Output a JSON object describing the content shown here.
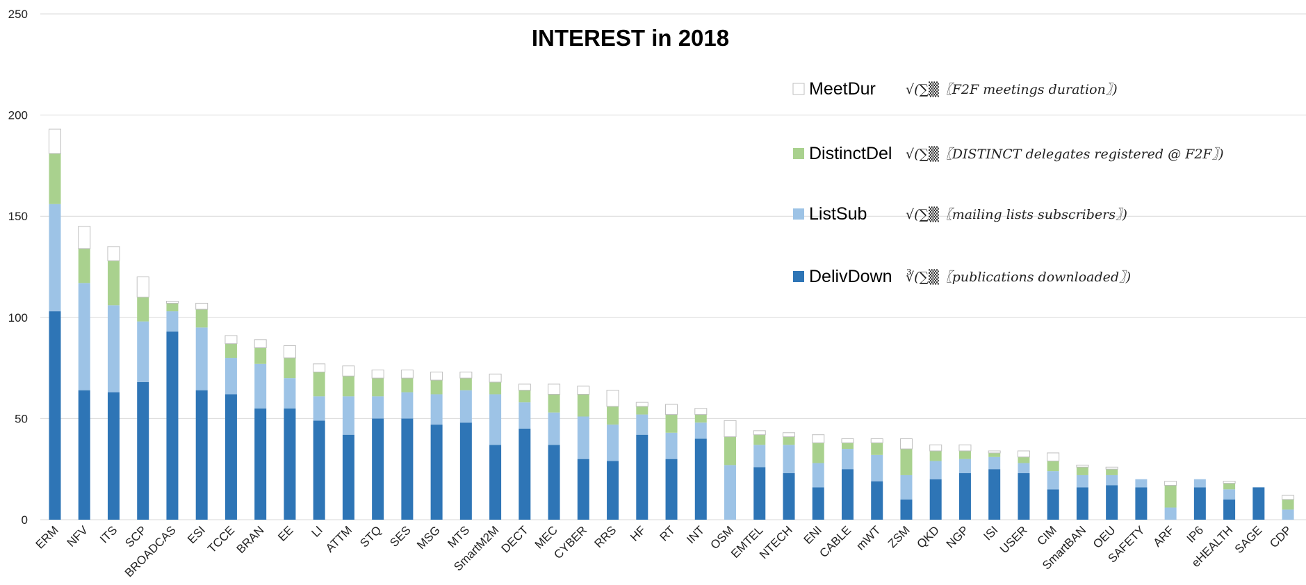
{
  "chart_data": {
    "type": "stacked_bar",
    "title": "INTEREST in 2018",
    "categories": [
      "ERM",
      "NFV",
      "ITS",
      "SCP",
      "BROADCAS",
      "ESI",
      "TCCE",
      "BRAN",
      "EE",
      "LI",
      "ATTM",
      "STQ",
      "SES",
      "MSG",
      "MTS",
      "SmartM2M",
      "DECT",
      "MEC",
      "CYBER",
      "RRS",
      "HF",
      "RT",
      "INT",
      "OSM",
      "EMTEL",
      "NTECH",
      "ENI",
      "CABLE",
      "mWT",
      "ZSM",
      "QKD",
      "NGP",
      "ISI",
      "USER",
      "CIM",
      "SmartBAN",
      "OEU",
      "SAFETY",
      "ARF",
      "IP6",
      "eHEALTH",
      "SAGE",
      "CDP"
    ],
    "series": [
      {
        "name": "DelivDown",
        "color": "#2e75b6",
        "values": [
          103,
          64,
          63,
          68,
          93,
          64,
          62,
          55,
          55,
          49,
          42,
          50,
          50,
          47,
          48,
          37,
          45,
          37,
          30,
          29,
          42,
          30,
          40,
          0,
          26,
          23,
          16,
          25,
          19,
          10,
          20,
          23,
          25,
          23,
          15,
          16,
          17,
          16,
          0,
          16,
          10,
          16,
          0
        ]
      },
      {
        "name": "ListSub",
        "color": "#9dc3e6",
        "values": [
          53,
          53,
          43,
          30,
          10,
          31,
          18,
          22,
          15,
          12,
          19,
          11,
          13,
          15,
          16,
          25,
          13,
          16,
          21,
          18,
          10,
          13,
          8,
          27,
          11,
          14,
          12,
          10,
          13,
          12,
          9,
          7,
          6,
          5,
          9,
          6,
          5,
          4,
          6,
          4,
          5,
          0,
          5
        ]
      },
      {
        "name": "DistinctDel",
        "color": "#a9d18e",
        "values": [
          25,
          17,
          22,
          12,
          4,
          9,
          7,
          8,
          10,
          12,
          10,
          9,
          7,
          7,
          6,
          6,
          6,
          9,
          11,
          9,
          4,
          9,
          4,
          14,
          5,
          4,
          10,
          3,
          6,
          13,
          5,
          4,
          2,
          3,
          5,
          4,
          3,
          0,
          11,
          0,
          3,
          0,
          5
        ]
      },
      {
        "name": "MeetDur",
        "color": "#ffffff",
        "values": [
          12,
          11,
          7,
          10,
          1,
          3,
          4,
          4,
          6,
          4,
          5,
          4,
          4,
          4,
          3,
          4,
          3,
          5,
          4,
          8,
          2,
          5,
          3,
          8,
          2,
          2,
          4,
          2,
          2,
          5,
          3,
          3,
          1,
          3,
          4,
          1,
          1,
          0,
          2,
          0,
          1,
          0,
          2
        ]
      }
    ],
    "legend_notes": [
      "∛(∑▒〖publications downloaded〗)",
      "√(∑▒〖mailing lists subscribers〗)",
      "√(∑▒〖DISTINCT delegates registered @ F2F〗)",
      "√(∑▒〖F2F meetings duration〗)"
    ],
    "ylim": [
      0,
      250
    ],
    "yticks": [
      0,
      50,
      100,
      150,
      200,
      250
    ],
    "grid": true
  }
}
